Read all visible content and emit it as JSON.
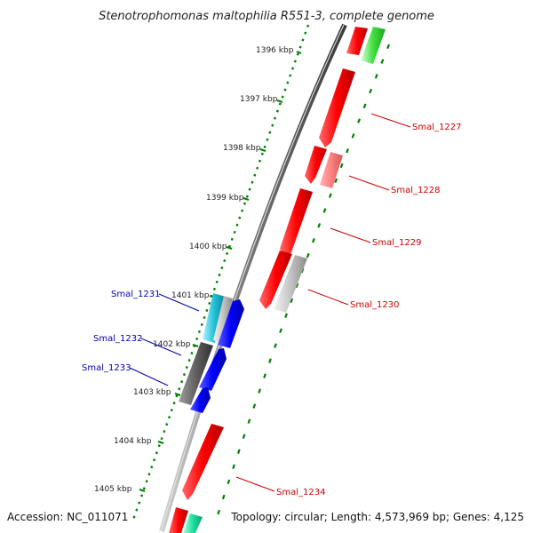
{
  "title": "Stenotrophomonas maltophilia R551-3, complete genome",
  "footer": {
    "accession": "Accession: NC_011071",
    "topology": "Topology: circular; Length: 4,573,969 bp; Genes: 4,125"
  },
  "ticks": [
    "1396 kbp",
    "1397 kbp",
    "1398 kbp",
    "1399 kbp",
    "1400 kbp",
    "1401 kbp",
    "1402 kbp",
    "1403 kbp",
    "1404 kbp",
    "1405 kbp"
  ],
  "genes": {
    "smal_1227": "Smal_1227",
    "smal_1228": "Smal_1228",
    "smal_1229": "Smal_1229",
    "smal_1230": "Smal_1230",
    "smal_1231": "Smal_1231",
    "smal_1232": "Smal_1232",
    "smal_1233": "Smal_1233",
    "smal_1234": "Smal_1234"
  },
  "colors": {
    "forward_strand": "#ff0000",
    "forward_pseudo": "#ff8080",
    "reverse_strand": "#0000ff",
    "rna": "#00d000",
    "other": "#c0c0c0",
    "cyan_feature": "#20c0d0",
    "dark_feature": "#606060",
    "tick_dots": "#008000",
    "label_forward": "#cc0000",
    "label_reverse": "#0000aa"
  }
}
